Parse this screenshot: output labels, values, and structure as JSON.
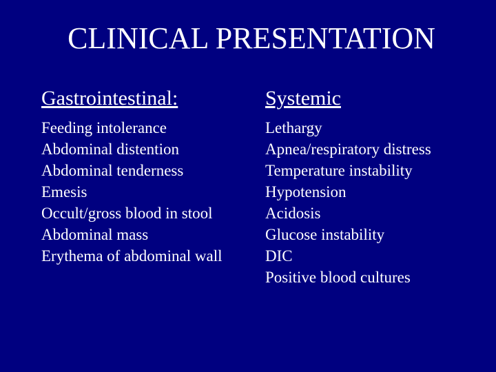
{
  "title": "CLINICAL PRESENTATION",
  "background_color": "#000080",
  "text_color": "#ffffff",
  "font_family": "Times New Roman",
  "title_fontsize": 44,
  "heading_fontsize": 30,
  "item_fontsize": 23,
  "columns": [
    {
      "heading": "Gastrointestinal:",
      "items": [
        "Feeding intolerance",
        "Abdominal distention",
        "Abdominal tenderness",
        "Emesis",
        "Occult/gross blood in stool",
        "Abdominal mass",
        "Erythema of abdominal wall"
      ]
    },
    {
      "heading": "Systemic",
      "items": [
        "Lethargy",
        "Apnea/respiratory distress",
        "Temperature instability",
        "Hypotension",
        "Acidosis",
        "Glucose instability",
        "DIC",
        "Positive blood cultures"
      ]
    }
  ]
}
